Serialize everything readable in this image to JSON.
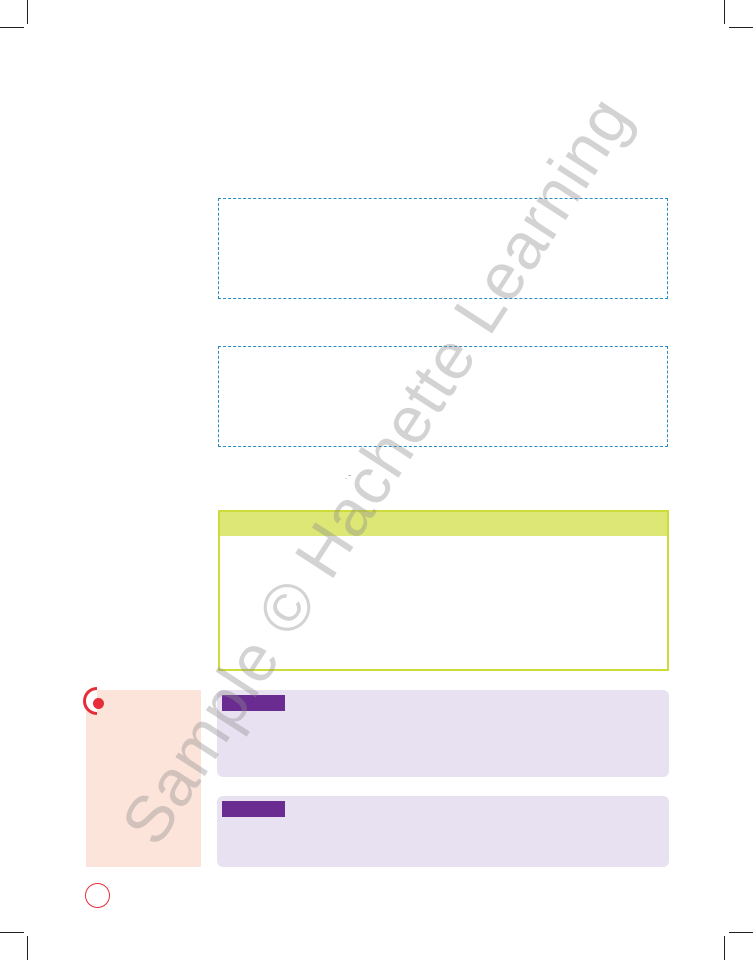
{
  "page": {
    "watermark_text": "Sample © Hachette Learning",
    "tiny_mark": "·  ‾",
    "colors": {
      "dashed_border": "#2b8cc4",
      "green_border": "#cddc39",
      "green_header": "#dce775",
      "side_panel": "#fce4da",
      "accent_red": "#e62e3b",
      "lavender": "#e8e1f1",
      "purple_tag": "#6a2c91"
    }
  }
}
